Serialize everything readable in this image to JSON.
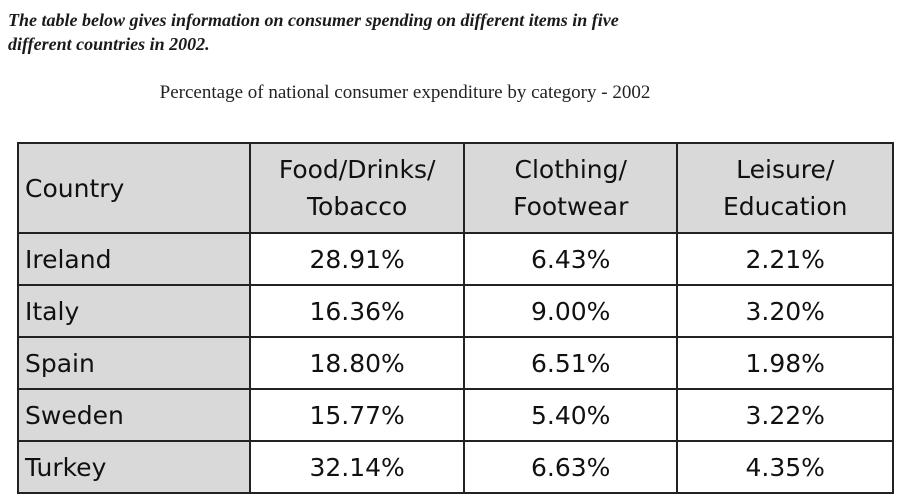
{
  "intro": {
    "line1": "The table below gives information on consumer spending on different items in five",
    "line2": "different countries in 2002."
  },
  "caption": "Percentage of national consumer expenditure by category - 2002",
  "table": {
    "headers": [
      {
        "line1": "Country",
        "line2": ""
      },
      {
        "line1": "Food/Drinks/",
        "line2": "Tobacco"
      },
      {
        "line1": "Clothing/",
        "line2": "Footwear"
      },
      {
        "line1": "Leisure/",
        "line2": "Education"
      }
    ],
    "rows": [
      {
        "country": "Ireland",
        "food": "28.91%",
        "clothing": "6.43%",
        "leisure": "2.21%"
      },
      {
        "country": "Italy",
        "food": "16.36%",
        "clothing": "9.00%",
        "leisure": "3.20%"
      },
      {
        "country": "Spain",
        "food": "18.80%",
        "clothing": "6.51%",
        "leisure": "1.98%"
      },
      {
        "country": "Sweden",
        "food": "15.77%",
        "clothing": "5.40%",
        "leisure": "3.22%"
      },
      {
        "country": "Turkey",
        "food": "32.14%",
        "clothing": "6.63%",
        "leisure": "4.35%"
      }
    ]
  }
}
